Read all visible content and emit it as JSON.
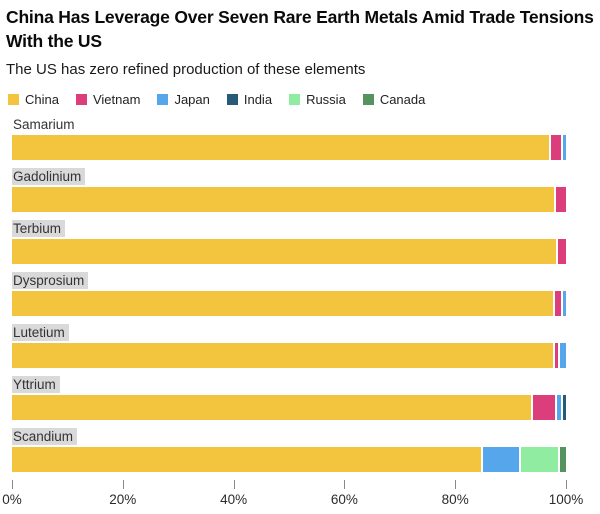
{
  "header": {
    "title": "China Has Leverage Over Seven Rare Earth Metals Amid Trade Tensions With the US",
    "subtitle": "The US has zero refined production of these elements"
  },
  "legend": [
    {
      "label": "China",
      "color": "#F3C53E"
    },
    {
      "label": "Vietnam",
      "color": "#DC3D7B"
    },
    {
      "label": "Japan",
      "color": "#55A6EA"
    },
    {
      "label": "India",
      "color": "#265A78"
    },
    {
      "label": "Russia",
      "color": "#8FECA0"
    },
    {
      "label": "Canada",
      "color": "#55935F"
    }
  ],
  "chart_data": {
    "type": "bar",
    "orientation": "horizontal",
    "stacked": true,
    "unit": "percent",
    "title": "China Has Leverage Over Seven Rare Earth Metals Amid Trade Tensions With the US",
    "xlabel": "",
    "ylabel": "",
    "xlim": [
      0,
      100
    ],
    "grid": false,
    "legend_position": "top",
    "categories": [
      "Samarium",
      "Gadolinium",
      "Terbium",
      "Dysprosium",
      "Lutetium",
      "Yttrium",
      "Scandium"
    ],
    "category_label_highlighted": [
      false,
      true,
      true,
      true,
      true,
      true,
      true
    ],
    "series": [
      {
        "name": "China",
        "values": [
          97.3,
          98.2,
          98.5,
          98.0,
          98.1,
          94.0,
          85.0
        ]
      },
      {
        "name": "Vietnam",
        "values": [
          2.2,
          1.8,
          1.5,
          1.4,
          0.9,
          4.3,
          0
        ]
      },
      {
        "name": "Japan",
        "values": [
          0.5,
          0,
          0,
          0.6,
          1.0,
          1.2,
          6.9
        ]
      },
      {
        "name": "India",
        "values": [
          0,
          0,
          0,
          0,
          0,
          0.5,
          0
        ]
      },
      {
        "name": "Russia",
        "values": [
          0,
          0,
          0,
          0,
          0,
          0,
          7.0
        ]
      },
      {
        "name": "Canada",
        "values": [
          0,
          0,
          0,
          0,
          0,
          0,
          1.1
        ]
      }
    ],
    "x_ticks": [
      {
        "label": "0%",
        "value": 0
      },
      {
        "label": "20%",
        "value": 20
      },
      {
        "label": "40%",
        "value": 40
      },
      {
        "label": "60%",
        "value": 60
      },
      {
        "label": "80%",
        "value": 80
      },
      {
        "label": "100%",
        "value": 100
      }
    ]
  }
}
